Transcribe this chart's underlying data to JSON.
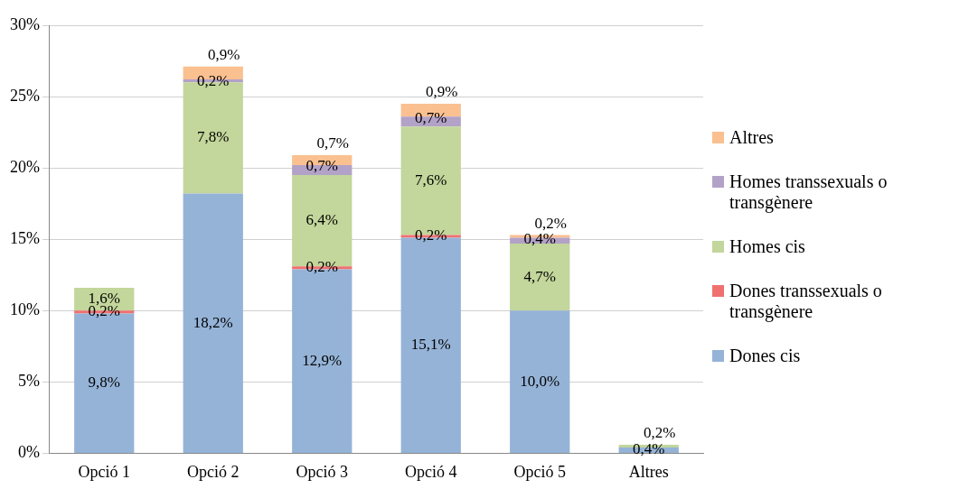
{
  "chart_data": {
    "type": "bar",
    "stacked": true,
    "categories": [
      "Opció 1",
      "Opció 2",
      "Opció 3",
      "Opció 4",
      "Opció 5",
      "Altres"
    ],
    "series": [
      {
        "name": "Dones  cis",
        "color": "#95b3d7",
        "values": [
          9.8,
          18.2,
          12.9,
          15.1,
          10.0,
          0.4
        ],
        "value_labels": [
          "9,8%",
          "18,2%",
          "12,9%",
          "15,1%",
          "10,0%",
          "0,4%"
        ]
      },
      {
        "name": "Dones transsexuals o transgènere",
        "color": "#f07070",
        "values": [
          0.2,
          null,
          0.2,
          0.2,
          null,
          null
        ],
        "value_labels": [
          "0,2%",
          null,
          "0,2%",
          "0,2%",
          null,
          null
        ]
      },
      {
        "name": "Homes cis",
        "color": "#c3d69b",
        "values": [
          1.6,
          7.8,
          6.4,
          7.6,
          4.7,
          0.2
        ],
        "value_labels": [
          "1,6%",
          "7,8%",
          "6,4%",
          "7,6%",
          "4,7%",
          "0,2%"
        ]
      },
      {
        "name": "Homes transsexuals o transgènere",
        "color": "#b3a2c7",
        "values": [
          null,
          0.2,
          0.7,
          0.7,
          0.4,
          null
        ],
        "value_labels": [
          null,
          "0,2%",
          "0,7%",
          "0,7%",
          "0,4%",
          null
        ]
      },
      {
        "name": "Altres",
        "color": "#fac090",
        "values": [
          null,
          0.9,
          0.7,
          0.9,
          0.2,
          null
        ],
        "value_labels": [
          null,
          "0,9%",
          "0,7%",
          "0,9%",
          "0,2%",
          null
        ]
      }
    ],
    "ylim": [
      0,
      30
    ],
    "yticks": [
      {
        "value": 0,
        "label": "0%"
      },
      {
        "value": 5,
        "label": "5%"
      },
      {
        "value": 10,
        "label": "10%"
      },
      {
        "value": 15,
        "label": "15%"
      },
      {
        "value": 20,
        "label": "20%"
      },
      {
        "value": 25,
        "label": "25%"
      },
      {
        "value": 30,
        "label": "30%"
      }
    ],
    "grid": "y",
    "legend": "right"
  }
}
